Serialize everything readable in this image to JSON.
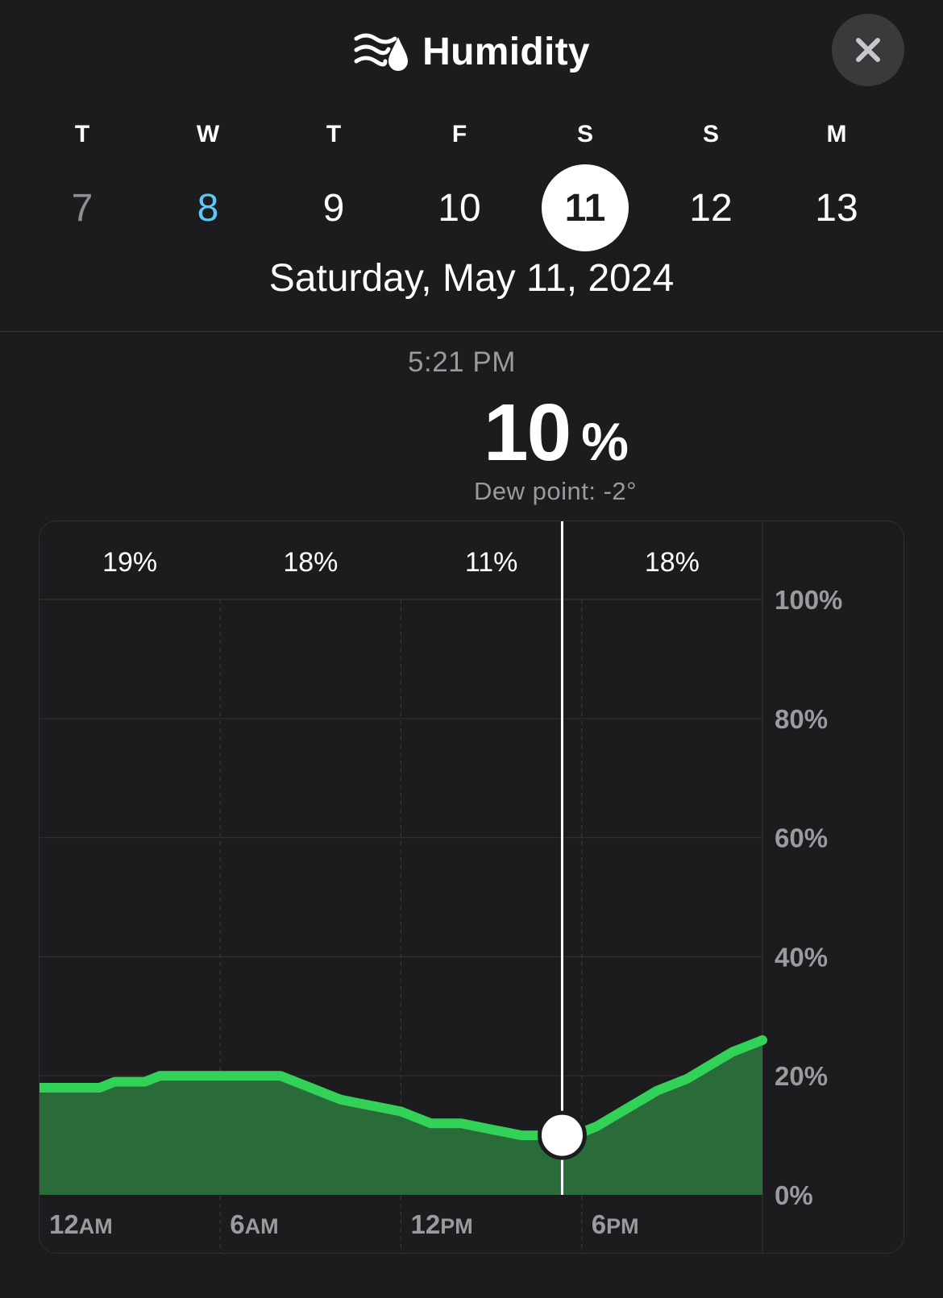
{
  "header": {
    "title": "Humidity",
    "icon": "humidity-icon",
    "close_icon": "close-icon"
  },
  "week": {
    "days": [
      {
        "letter": "T",
        "number": "7",
        "state": "past"
      },
      {
        "letter": "W",
        "number": "8",
        "state": "today"
      },
      {
        "letter": "T",
        "number": "9",
        "state": "future"
      },
      {
        "letter": "F",
        "number": "10",
        "state": "future"
      },
      {
        "letter": "S",
        "number": "11",
        "state": "selected"
      },
      {
        "letter": "S",
        "number": "12",
        "state": "future"
      },
      {
        "letter": "M",
        "number": "13",
        "state": "future"
      }
    ],
    "selected_date_label": "Saturday, May 11, 2024"
  },
  "readout": {
    "time": "5:21 PM",
    "value": "10",
    "unit": "%",
    "dew_point": "Dew point: -2°"
  },
  "colors": {
    "background": "#1c1c1e",
    "line": "#32d158",
    "fill": "#2a6b3a",
    "today": "#5ac8fa",
    "past": "#8e8e93",
    "muted_text": "#9a9a9f"
  },
  "chart_data": {
    "type": "area",
    "x_unit": "hours",
    "xlim": [
      0,
      24
    ],
    "ylim": [
      0,
      100
    ],
    "x": [
      0,
      0.5,
      1.0,
      1.5,
      2.0,
      2.5,
      3.0,
      3.5,
      4.0,
      4.5,
      5.0,
      5.5,
      6.0,
      6.5,
      7.0,
      7.5,
      8.0,
      8.5,
      9.0,
      9.5,
      10.0,
      10.5,
      11.0,
      11.5,
      12.0,
      12.5,
      13.0,
      13.5,
      14.0,
      14.5,
      15.0,
      15.5,
      16.0,
      16.5,
      17.0,
      17.35,
      18.0,
      18.5,
      19.0,
      19.5,
      20.0,
      20.5,
      21.0,
      21.5,
      22.0,
      22.5,
      23.0,
      23.5,
      24.0
    ],
    "y": [
      18,
      18,
      18,
      18,
      18,
      19,
      19,
      19,
      20,
      20,
      20,
      20,
      20,
      20,
      20,
      20,
      20,
      19,
      18,
      17,
      16,
      15.5,
      15,
      14.5,
      14,
      13,
      12,
      12,
      12,
      11.5,
      11,
      10.5,
      10,
      10,
      10,
      10,
      10.5,
      11.5,
      13,
      14.5,
      16,
      17.5,
      18.5,
      19.5,
      21,
      22.5,
      24,
      25,
      26
    ],
    "selected": {
      "x": 17.35,
      "y": 10
    },
    "period_labels": [
      "19%",
      "18%",
      "11%",
      "18%"
    ],
    "x_tick_labels": [
      {
        "main": "12",
        "suffix": "AM"
      },
      {
        "main": "6",
        "suffix": "AM"
      },
      {
        "main": "12",
        "suffix": "PM"
      },
      {
        "main": "6",
        "suffix": "PM"
      }
    ],
    "y_tick_labels": [
      "100%",
      "80%",
      "60%",
      "40%",
      "20%",
      "0%"
    ],
    "y_ticks": [
      100,
      80,
      60,
      40,
      20,
      0
    ]
  }
}
